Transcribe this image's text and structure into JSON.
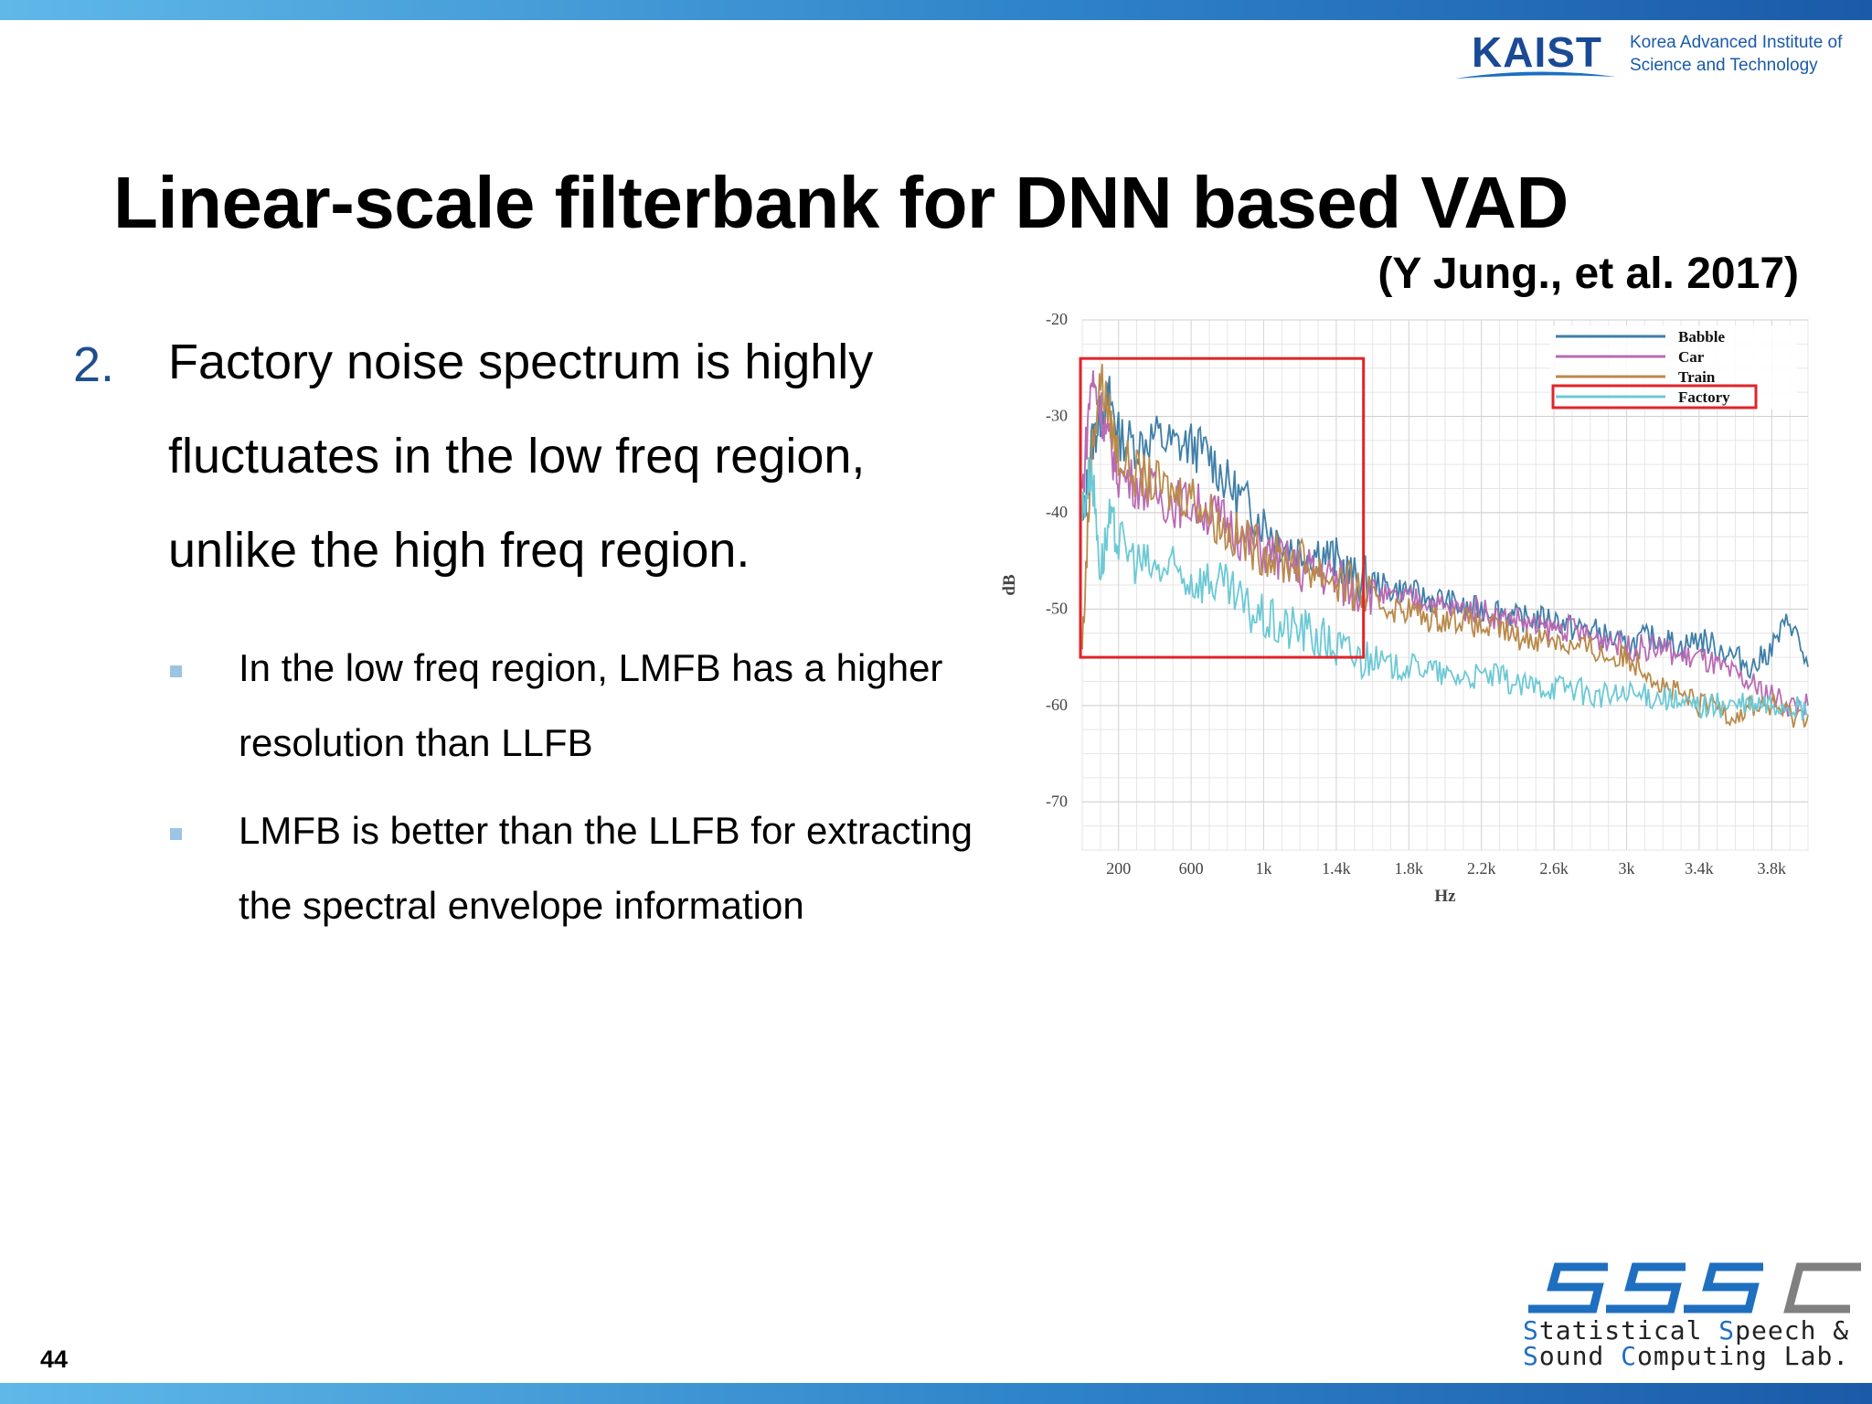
{
  "header": {
    "kaist_wordmark": "KAIST",
    "kaist_subtitle_line1": "Korea Advanced Institute of",
    "kaist_subtitle_line2": "Science and Technology"
  },
  "slide": {
    "title": "Linear-scale filterbank for DNN based VAD",
    "citation": "(Y Jung., et al. 2017)",
    "main_point": {
      "number": "2.",
      "text": "Factory noise spectrum is highly fluctuates in the low freq region, unlike the high freq region."
    },
    "sub_points": [
      {
        "text": "In the low freq region, LMFB has a higher resolution than LLFB"
      },
      {
        "text": "LMFB is better than the LLFB for extracting the spectral envelope information"
      }
    ],
    "page_number": "44"
  },
  "footer_logo": {
    "monogram": "SSSC",
    "line1_cap1": "S",
    "line1_rest1": "tatistical ",
    "line1_cap2": "S",
    "line1_rest2": "peech &",
    "line2_cap1": "S",
    "line2_rest1": "ound ",
    "line2_cap2": "C",
    "line2_rest2": "omputing Lab."
  },
  "chart_data": {
    "type": "line",
    "xlabel": "Hz",
    "ylabel": "dB",
    "x_ticks": [
      "200",
      "600",
      "1k",
      "1.4k",
      "1.8k",
      "2.2k",
      "2.6k",
      "3k",
      "3.4k",
      "3.8k"
    ],
    "x_tick_values": [
      200,
      600,
      1000,
      1400,
      1800,
      2200,
      2600,
      3000,
      3400,
      3800
    ],
    "y_ticks": [
      "-20",
      "-30",
      "-40",
      "-50",
      "-60",
      "-70"
    ],
    "y_tick_values": [
      -20,
      -30,
      -40,
      -50,
      -60,
      -70
    ],
    "xlim": [
      0,
      4000
    ],
    "ylim": [
      -75,
      -20
    ],
    "grid": true,
    "legend_position": "top-right",
    "highlight_box": {
      "x_range": [
        0,
        1550
      ],
      "y_range": [
        -55,
        -24
      ]
    },
    "series": [
      {
        "name": "Babble",
        "color": "#3f7fa8",
        "x": [
          0,
          50,
          100,
          150,
          200,
          300,
          400,
          500,
          600,
          700,
          800,
          900,
          1000,
          1100,
          1200,
          1300,
          1400,
          1500,
          1600,
          1700,
          1800,
          1900,
          2000,
          2100,
          2200,
          2300,
          2400,
          2500,
          2600,
          2700,
          2800,
          2900,
          3000,
          3100,
          3200,
          3300,
          3400,
          3500,
          3600,
          3700,
          3800,
          3900,
          4000
        ],
        "values": [
          -42,
          -33,
          -30,
          -28,
          -32,
          -33,
          -32,
          -33,
          -33,
          -34,
          -37,
          -39,
          -41,
          -43,
          -44,
          -44,
          -45,
          -47,
          -47,
          -48,
          -48,
          -49,
          -49,
          -50,
          -50,
          -50,
          -51,
          -51,
          -51,
          -52,
          -52,
          -53,
          -54,
          -53,
          -53,
          -54,
          -53,
          -54,
          -55,
          -56,
          -54,
          -51,
          -56
        ]
      },
      {
        "name": "Car",
        "color": "#b96ab4",
        "x": [
          0,
          50,
          100,
          150,
          200,
          300,
          400,
          500,
          600,
          700,
          800,
          900,
          1000,
          1100,
          1200,
          1300,
          1400,
          1500,
          1600,
          1700,
          1800,
          1900,
          2000,
          2100,
          2200,
          2300,
          2400,
          2500,
          2600,
          2700,
          2800,
          2900,
          3000,
          3100,
          3200,
          3300,
          3400,
          3500,
          3600,
          3700,
          3800,
          3900,
          4000
        ],
        "values": [
          -38,
          -26,
          -29,
          -33,
          -36,
          -37,
          -38,
          -39,
          -39,
          -40,
          -41,
          -43,
          -44,
          -45,
          -46,
          -46,
          -47,
          -48,
          -48,
          -49,
          -49,
          -49,
          -50,
          -50,
          -50,
          -51,
          -51,
          -52,
          -52,
          -52,
          -53,
          -53,
          -54,
          -54,
          -54,
          -55,
          -55,
          -56,
          -57,
          -58,
          -59,
          -60,
          -60
        ]
      },
      {
        "name": "Train",
        "color": "#b9894a",
        "x": [
          0,
          50,
          100,
          150,
          200,
          300,
          400,
          500,
          600,
          700,
          800,
          900,
          1000,
          1100,
          1200,
          1300,
          1400,
          1500,
          1600,
          1700,
          1800,
          1900,
          2000,
          2100,
          2200,
          2300,
          2400,
          2500,
          2600,
          2700,
          2800,
          2900,
          3000,
          3100,
          3200,
          3300,
          3400,
          3500,
          3600,
          3700,
          3800,
          3900,
          4000
        ],
        "values": [
          -54,
          -34,
          -26,
          -30,
          -34,
          -36,
          -37,
          -38,
          -38,
          -40,
          -42,
          -43,
          -44,
          -45,
          -45,
          -46,
          -47,
          -48,
          -49,
          -50,
          -50,
          -51,
          -51,
          -51,
          -52,
          -52,
          -53,
          -53,
          -53,
          -54,
          -54,
          -55,
          -55,
          -56,
          -58,
          -59,
          -60,
          -60,
          -61,
          -60,
          -60,
          -61,
          -61
        ]
      },
      {
        "name": "Factory",
        "color": "#6cc9d4",
        "x": [
          0,
          50,
          100,
          150,
          200,
          300,
          400,
          500,
          600,
          700,
          800,
          900,
          1000,
          1100,
          1200,
          1300,
          1400,
          1500,
          1600,
          1700,
          1800,
          1900,
          2000,
          2100,
          2200,
          2300,
          2400,
          2500,
          2600,
          2700,
          2800,
          2900,
          3000,
          3100,
          3200,
          3300,
          3400,
          3500,
          3600,
          3700,
          3800,
          3900,
          4000
        ],
        "values": [
          -40,
          -35,
          -46,
          -41,
          -43,
          -45,
          -46,
          -46,
          -47,
          -47,
          -48,
          -50,
          -51,
          -52,
          -52,
          -53,
          -54,
          -55,
          -55,
          -56,
          -56,
          -56,
          -57,
          -57,
          -57,
          -57,
          -58,
          -58,
          -58,
          -58,
          -59,
          -59,
          -59,
          -59,
          -59,
          -60,
          -60,
          -60,
          -60,
          -60,
          -60,
          -60,
          -61
        ]
      }
    ]
  }
}
